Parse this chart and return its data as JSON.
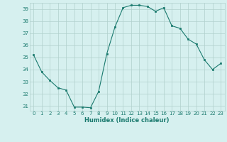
{
  "x": [
    0,
    1,
    2,
    3,
    4,
    5,
    6,
    7,
    8,
    9,
    10,
    11,
    12,
    13,
    14,
    15,
    16,
    17,
    18,
    19,
    20,
    21,
    22,
    23
  ],
  "y": [
    35.2,
    33.8,
    33.1,
    32.5,
    32.3,
    30.9,
    30.9,
    30.85,
    32.2,
    35.3,
    37.5,
    39.1,
    39.3,
    39.3,
    39.2,
    38.8,
    39.1,
    37.6,
    37.4,
    36.5,
    36.1,
    34.8,
    34.0,
    34.5
  ],
  "xlabel": "Humidex (Indice chaleur)",
  "ylim": [
    30.6,
    39.5
  ],
  "xlim": [
    -0.5,
    23.5
  ],
  "yticks": [
    31,
    32,
    33,
    34,
    35,
    36,
    37,
    38,
    39
  ],
  "xticks": [
    0,
    1,
    2,
    3,
    4,
    5,
    6,
    7,
    8,
    9,
    10,
    11,
    12,
    13,
    14,
    15,
    16,
    17,
    18,
    19,
    20,
    21,
    22,
    23
  ],
  "line_color": "#1a7a6e",
  "marker_color": "#1a7a6e",
  "bg_color": "#d6f0ef",
  "grid_color": "#b0d0cc",
  "tick_color": "#1a7a6e",
  "xlabel_fontsize": 6.0,
  "tick_fontsize": 5.0
}
